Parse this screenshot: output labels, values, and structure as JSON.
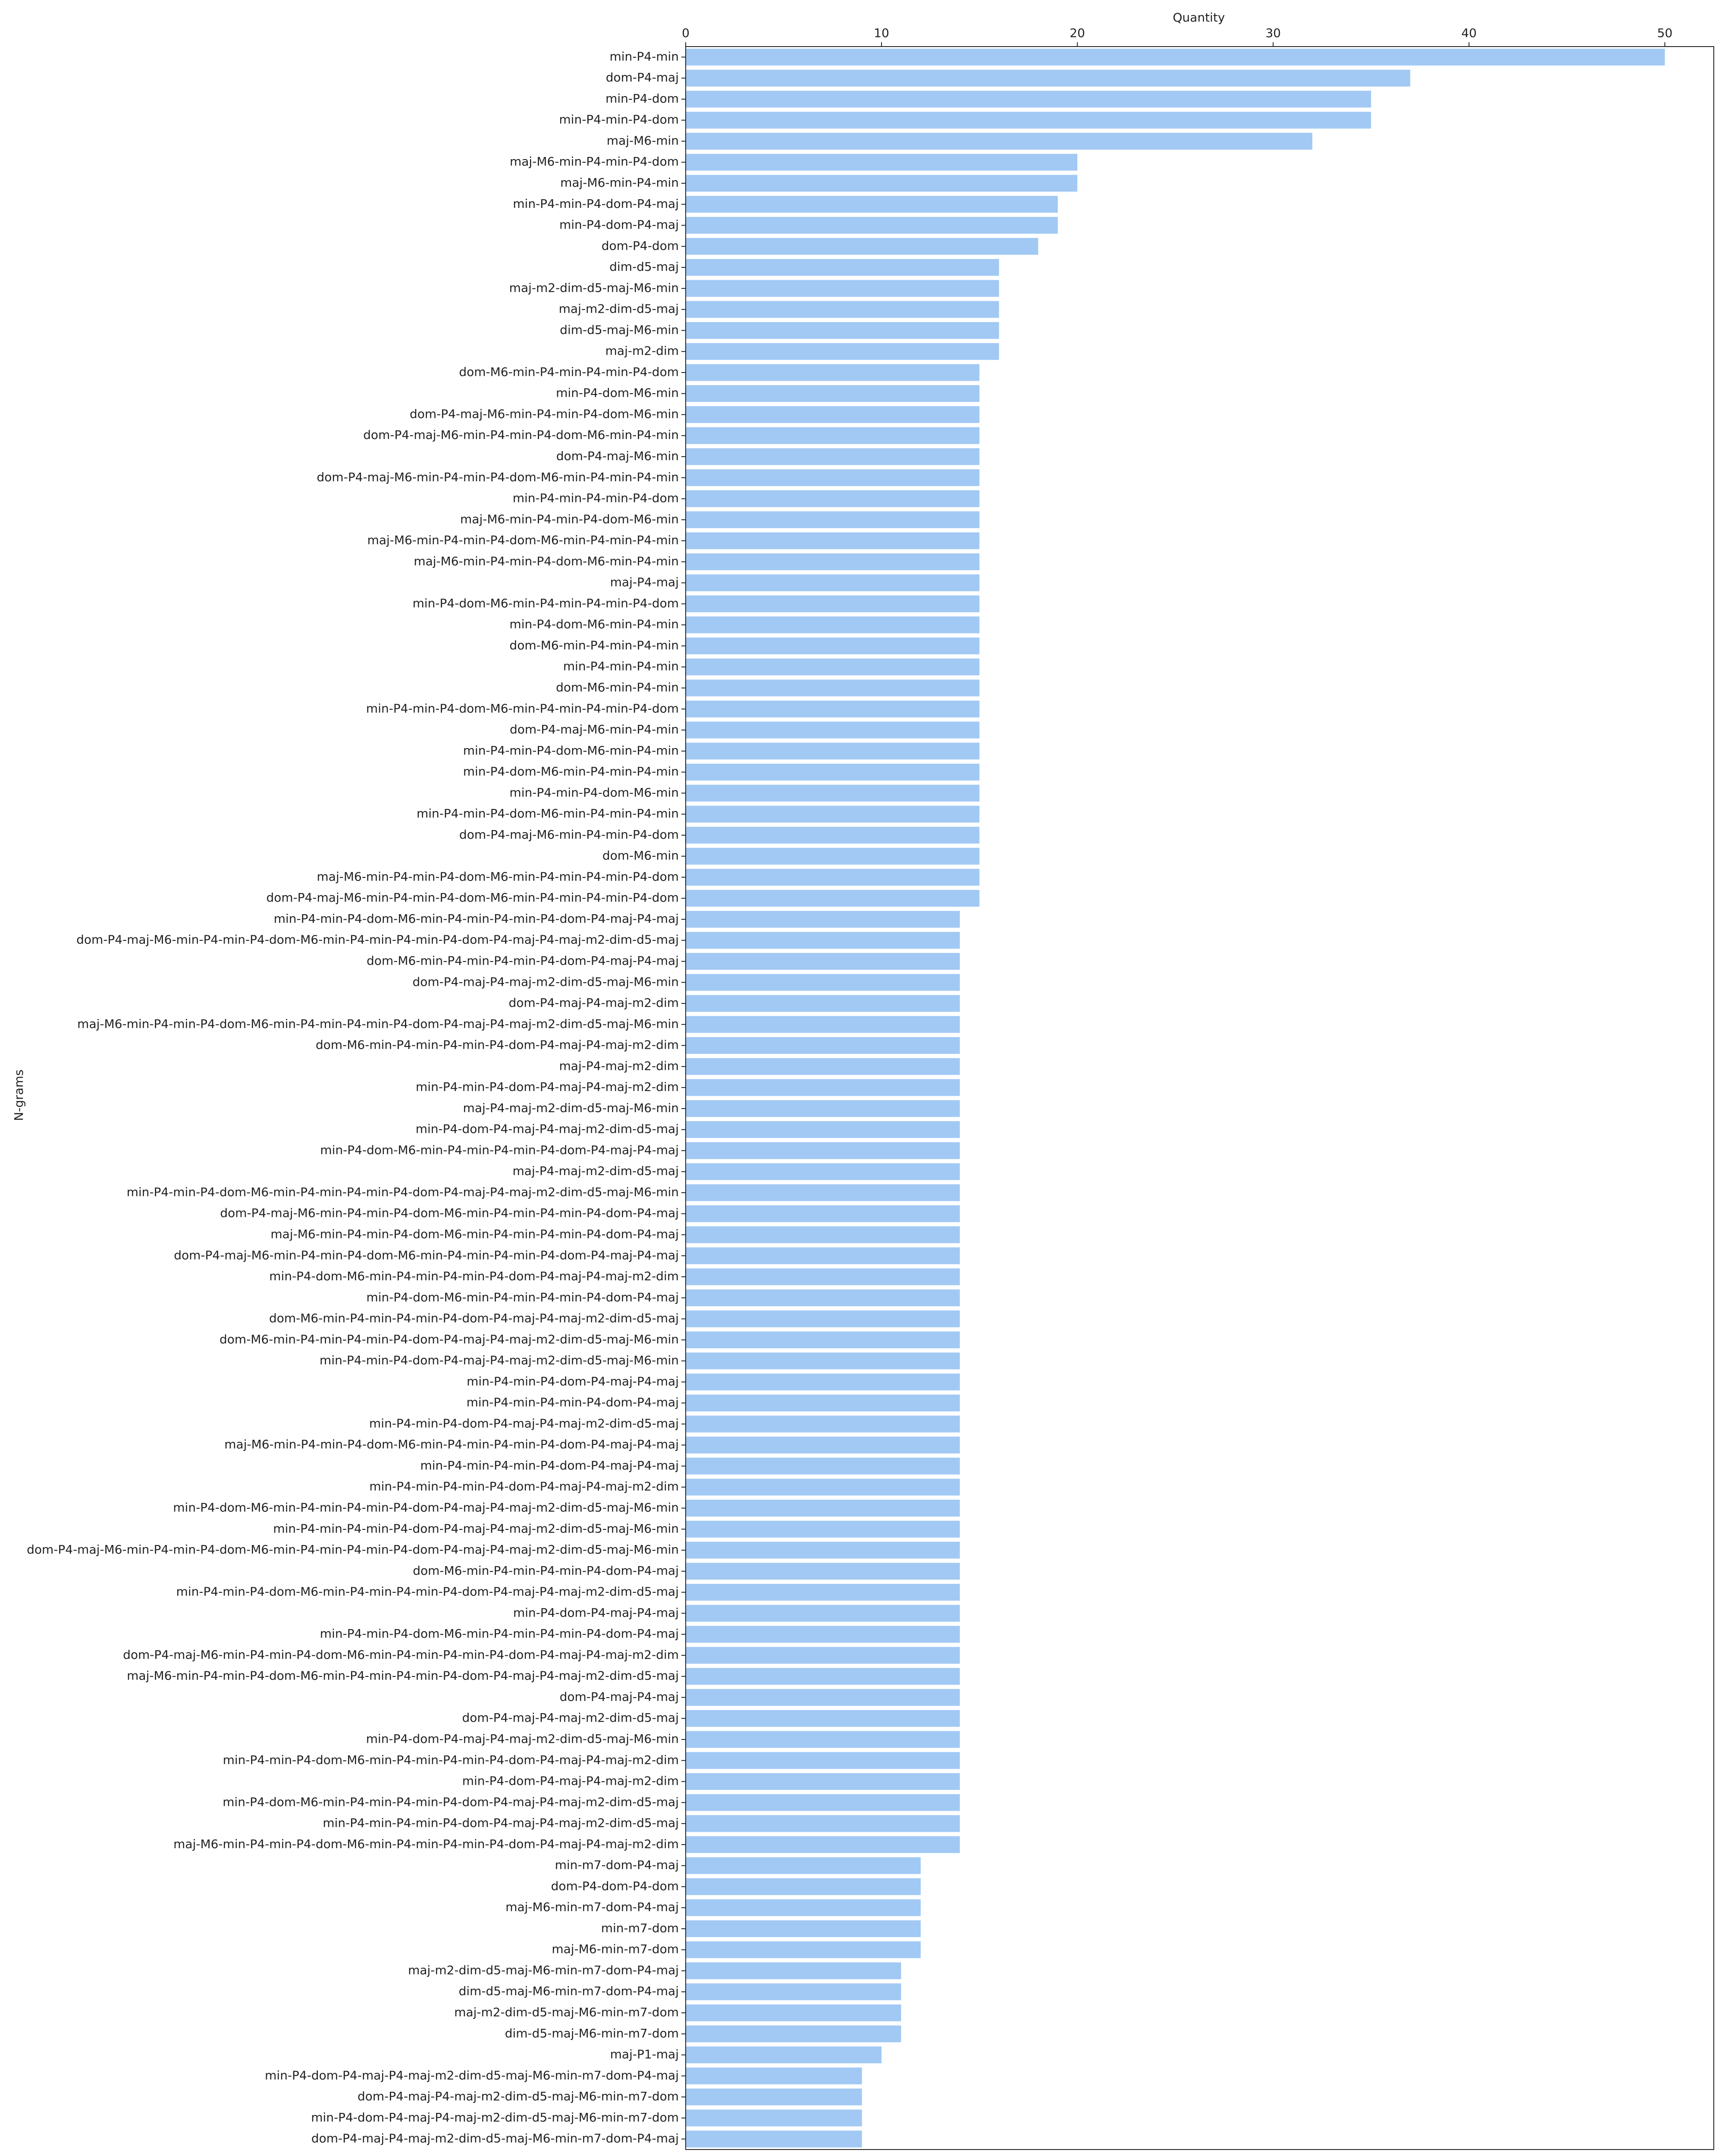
{
  "chart_data": {
    "type": "barh",
    "xlabel": "Quantity",
    "ylabel": "N-grams",
    "color": "#a1c9f4",
    "xlim": [
      0,
      52.5
    ],
    "xticks": [
      0,
      10,
      20,
      30,
      40,
      50
    ],
    "grid": false,
    "categories": [
      "min-P4-min",
      "dom-P4-maj",
      "min-P4-dom",
      "min-P4-min-P4-dom",
      "maj-M6-min",
      "maj-M6-min-P4-min-P4-dom",
      "maj-M6-min-P4-min",
      "min-P4-min-P4-dom-P4-maj",
      "min-P4-dom-P4-maj",
      "dom-P4-dom",
      "dim-d5-maj",
      "maj-m2-dim-d5-maj-M6-min",
      "maj-m2-dim-d5-maj",
      "dim-d5-maj-M6-min",
      "maj-m2-dim",
      "dom-M6-min-P4-min-P4-min-P4-dom",
      "min-P4-dom-M6-min",
      "dom-P4-maj-M6-min-P4-min-P4-dom-M6-min",
      "dom-P4-maj-M6-min-P4-min-P4-dom-M6-min-P4-min",
      "dom-P4-maj-M6-min",
      "dom-P4-maj-M6-min-P4-min-P4-dom-M6-min-P4-min-P4-min",
      "min-P4-min-P4-min-P4-dom",
      "maj-M6-min-P4-min-P4-dom-M6-min",
      "maj-M6-min-P4-min-P4-dom-M6-min-P4-min-P4-min",
      "maj-M6-min-P4-min-P4-dom-M6-min-P4-min",
      "maj-P4-maj",
      "min-P4-dom-M6-min-P4-min-P4-min-P4-dom",
      "min-P4-dom-M6-min-P4-min",
      "dom-M6-min-P4-min-P4-min",
      "min-P4-min-P4-min",
      "dom-M6-min-P4-min",
      "min-P4-min-P4-dom-M6-min-P4-min-P4-min-P4-dom",
      "dom-P4-maj-M6-min-P4-min",
      "min-P4-min-P4-dom-M6-min-P4-min",
      "min-P4-dom-M6-min-P4-min-P4-min",
      "min-P4-min-P4-dom-M6-min",
      "min-P4-min-P4-dom-M6-min-P4-min-P4-min",
      "dom-P4-maj-M6-min-P4-min-P4-dom",
      "dom-M6-min",
      "maj-M6-min-P4-min-P4-dom-M6-min-P4-min-P4-min-P4-dom",
      "dom-P4-maj-M6-min-P4-min-P4-dom-M6-min-P4-min-P4-min-P4-dom",
      "min-P4-min-P4-dom-M6-min-P4-min-P4-min-P4-dom-P4-maj-P4-maj",
      "dom-P4-maj-M6-min-P4-min-P4-dom-M6-min-P4-min-P4-min-P4-dom-P4-maj-P4-maj-m2-dim-d5-maj",
      "dom-M6-min-P4-min-P4-min-P4-dom-P4-maj-P4-maj",
      "dom-P4-maj-P4-maj-m2-dim-d5-maj-M6-min",
      "dom-P4-maj-P4-maj-m2-dim",
      "maj-M6-min-P4-min-P4-dom-M6-min-P4-min-P4-min-P4-dom-P4-maj-P4-maj-m2-dim-d5-maj-M6-min",
      "dom-M6-min-P4-min-P4-min-P4-dom-P4-maj-P4-maj-m2-dim",
      "maj-P4-maj-m2-dim",
      "min-P4-min-P4-dom-P4-maj-P4-maj-m2-dim",
      "maj-P4-maj-m2-dim-d5-maj-M6-min",
      "min-P4-dom-P4-maj-P4-maj-m2-dim-d5-maj",
      "min-P4-dom-M6-min-P4-min-P4-min-P4-dom-P4-maj-P4-maj",
      "maj-P4-maj-m2-dim-d5-maj",
      "min-P4-min-P4-dom-M6-min-P4-min-P4-min-P4-dom-P4-maj-P4-maj-m2-dim-d5-maj-M6-min",
      "dom-P4-maj-M6-min-P4-min-P4-dom-M6-min-P4-min-P4-min-P4-dom-P4-maj",
      "maj-M6-min-P4-min-P4-dom-M6-min-P4-min-P4-min-P4-dom-P4-maj",
      "dom-P4-maj-M6-min-P4-min-P4-dom-M6-min-P4-min-P4-min-P4-dom-P4-maj-P4-maj",
      "min-P4-dom-M6-min-P4-min-P4-min-P4-dom-P4-maj-P4-maj-m2-dim",
      "min-P4-dom-M6-min-P4-min-P4-min-P4-dom-P4-maj",
      "dom-M6-min-P4-min-P4-min-P4-dom-P4-maj-P4-maj-m2-dim-d5-maj",
      "dom-M6-min-P4-min-P4-min-P4-dom-P4-maj-P4-maj-m2-dim-d5-maj-M6-min",
      "min-P4-min-P4-dom-P4-maj-P4-maj-m2-dim-d5-maj-M6-min",
      "min-P4-min-P4-dom-P4-maj-P4-maj",
      "min-P4-min-P4-min-P4-dom-P4-maj",
      "min-P4-min-P4-dom-P4-maj-P4-maj-m2-dim-d5-maj",
      "maj-M6-min-P4-min-P4-dom-M6-min-P4-min-P4-min-P4-dom-P4-maj-P4-maj",
      "min-P4-min-P4-min-P4-dom-P4-maj-P4-maj",
      "min-P4-min-P4-min-P4-dom-P4-maj-P4-maj-m2-dim",
      "min-P4-dom-M6-min-P4-min-P4-min-P4-dom-P4-maj-P4-maj-m2-dim-d5-maj-M6-min",
      "min-P4-min-P4-min-P4-dom-P4-maj-P4-maj-m2-dim-d5-maj-M6-min",
      "dom-P4-maj-M6-min-P4-min-P4-dom-M6-min-P4-min-P4-min-P4-dom-P4-maj-P4-maj-m2-dim-d5-maj-M6-min",
      "dom-M6-min-P4-min-P4-min-P4-dom-P4-maj",
      "min-P4-min-P4-dom-M6-min-P4-min-P4-min-P4-dom-P4-maj-P4-maj-m2-dim-d5-maj",
      "min-P4-dom-P4-maj-P4-maj",
      "min-P4-min-P4-dom-M6-min-P4-min-P4-min-P4-dom-P4-maj",
      "dom-P4-maj-M6-min-P4-min-P4-dom-M6-min-P4-min-P4-min-P4-dom-P4-maj-P4-maj-m2-dim",
      "maj-M6-min-P4-min-P4-dom-M6-min-P4-min-P4-min-P4-dom-P4-maj-P4-maj-m2-dim-d5-maj",
      "dom-P4-maj-P4-maj",
      "dom-P4-maj-P4-maj-m2-dim-d5-maj",
      "min-P4-dom-P4-maj-P4-maj-m2-dim-d5-maj-M6-min",
      "min-P4-min-P4-dom-M6-min-P4-min-P4-min-P4-dom-P4-maj-P4-maj-m2-dim",
      "min-P4-dom-P4-maj-P4-maj-m2-dim",
      "min-P4-dom-M6-min-P4-min-P4-min-P4-dom-P4-maj-P4-maj-m2-dim-d5-maj",
      "min-P4-min-P4-min-P4-dom-P4-maj-P4-maj-m2-dim-d5-maj",
      "maj-M6-min-P4-min-P4-dom-M6-min-P4-min-P4-min-P4-dom-P4-maj-P4-maj-m2-dim",
      "min-m7-dom-P4-maj",
      "dom-P4-dom-P4-dom",
      "maj-M6-min-m7-dom-P4-maj",
      "min-m7-dom",
      "maj-M6-min-m7-dom",
      "maj-m2-dim-d5-maj-M6-min-m7-dom-P4-maj",
      "dim-d5-maj-M6-min-m7-dom-P4-maj",
      "maj-m2-dim-d5-maj-M6-min-m7-dom",
      "dim-d5-maj-M6-min-m7-dom",
      "maj-P1-maj",
      "min-P4-dom-P4-maj-P4-maj-m2-dim-d5-maj-M6-min-m7-dom-P4-maj",
      "dom-P4-maj-P4-maj-m2-dim-d5-maj-M6-min-m7-dom",
      "min-P4-dom-P4-maj-P4-maj-m2-dim-d5-maj-M6-min-m7-dom",
      "dom-P4-maj-P4-maj-m2-dim-d5-maj-M6-min-m7-dom-P4-maj"
    ],
    "values": [
      50,
      37,
      35,
      35,
      32,
      20,
      20,
      19,
      19,
      18,
      16,
      16,
      16,
      16,
      16,
      15,
      15,
      15,
      15,
      15,
      15,
      15,
      15,
      15,
      15,
      15,
      15,
      15,
      15,
      15,
      15,
      15,
      15,
      15,
      15,
      15,
      15,
      15,
      15,
      15,
      15,
      14,
      14,
      14,
      14,
      14,
      14,
      14,
      14,
      14,
      14,
      14,
      14,
      14,
      14,
      14,
      14,
      14,
      14,
      14,
      14,
      14,
      14,
      14,
      14,
      14,
      14,
      14,
      14,
      14,
      14,
      14,
      14,
      14,
      14,
      14,
      14,
      14,
      14,
      14,
      14,
      14,
      14,
      14,
      14,
      14,
      12,
      12,
      12,
      12,
      12,
      11,
      11,
      11,
      11,
      10,
      9,
      9,
      9,
      9
    ]
  }
}
